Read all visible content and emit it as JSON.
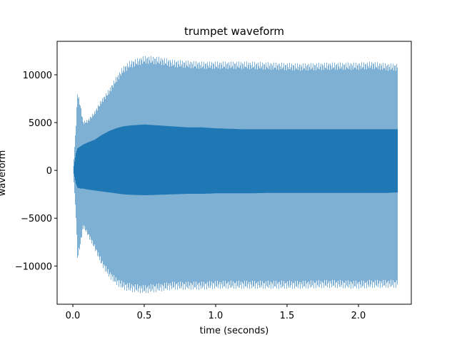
{
  "chart_data": {
    "type": "line",
    "title": "trumpet waveform",
    "xlabel": "time (seconds)",
    "ylabel": "waveform",
    "xlim": [
      -0.11,
      2.37
    ],
    "ylim": [
      -14000,
      13500
    ],
    "xticks": [
      0.0,
      0.5,
      1.0,
      1.5,
      2.0
    ],
    "xtick_labels": [
      "0.0",
      "0.5",
      "1.0",
      "1.5",
      "2.0"
    ],
    "yticks": [
      -10000,
      -5000,
      0,
      5000,
      10000
    ],
    "ytick_labels": [
      "−10000",
      "−5000",
      "0",
      "5000",
      "10000"
    ],
    "grid": false,
    "series": [
      {
        "color": "#1f77b4",
        "duration": 2.27,
        "envelope": {
          "t": [
            0.0,
            0.02,
            0.03,
            0.05,
            0.07,
            0.1,
            0.15,
            0.2,
            0.25,
            0.3,
            0.35,
            0.4,
            0.5,
            0.6,
            0.7,
            0.8,
            0.9,
            1.0,
            1.2,
            1.4,
            1.6,
            1.8,
            2.0,
            2.1,
            2.2,
            2.27
          ],
          "outer_max": [
            0,
            5000,
            8300,
            7000,
            5200,
            5300,
            6200,
            7500,
            8500,
            9800,
            10900,
            11500,
            12000,
            11900,
            11600,
            11500,
            11400,
            11400,
            11400,
            11300,
            11200,
            11300,
            11300,
            11400,
            11200,
            11200
          ],
          "outer_min": [
            0,
            -5000,
            -9400,
            -8000,
            -6000,
            -6800,
            -8300,
            -10000,
            -11200,
            -12000,
            -12500,
            -12700,
            -12900,
            -12700,
            -12500,
            -12500,
            -12500,
            -12400,
            -12400,
            -12400,
            -12400,
            -12300,
            -12400,
            -12300,
            -12300,
            -12300
          ],
          "core_max": [
            0,
            1800,
            2300,
            2500,
            2700,
            2900,
            3200,
            3700,
            4100,
            4400,
            4600,
            4700,
            4800,
            4700,
            4600,
            4500,
            4500,
            4400,
            4300,
            4300,
            4300,
            4300,
            4300,
            4300,
            4300,
            4300
          ],
          "core_min": [
            0,
            -1400,
            -1800,
            -1900,
            -1900,
            -2000,
            -2100,
            -2200,
            -2300,
            -2400,
            -2500,
            -2550,
            -2600,
            -2550,
            -2500,
            -2450,
            -2450,
            -2400,
            -2400,
            -2350,
            -2350,
            -2350,
            -2350,
            -2350,
            -2350,
            -2300
          ]
        }
      }
    ]
  }
}
